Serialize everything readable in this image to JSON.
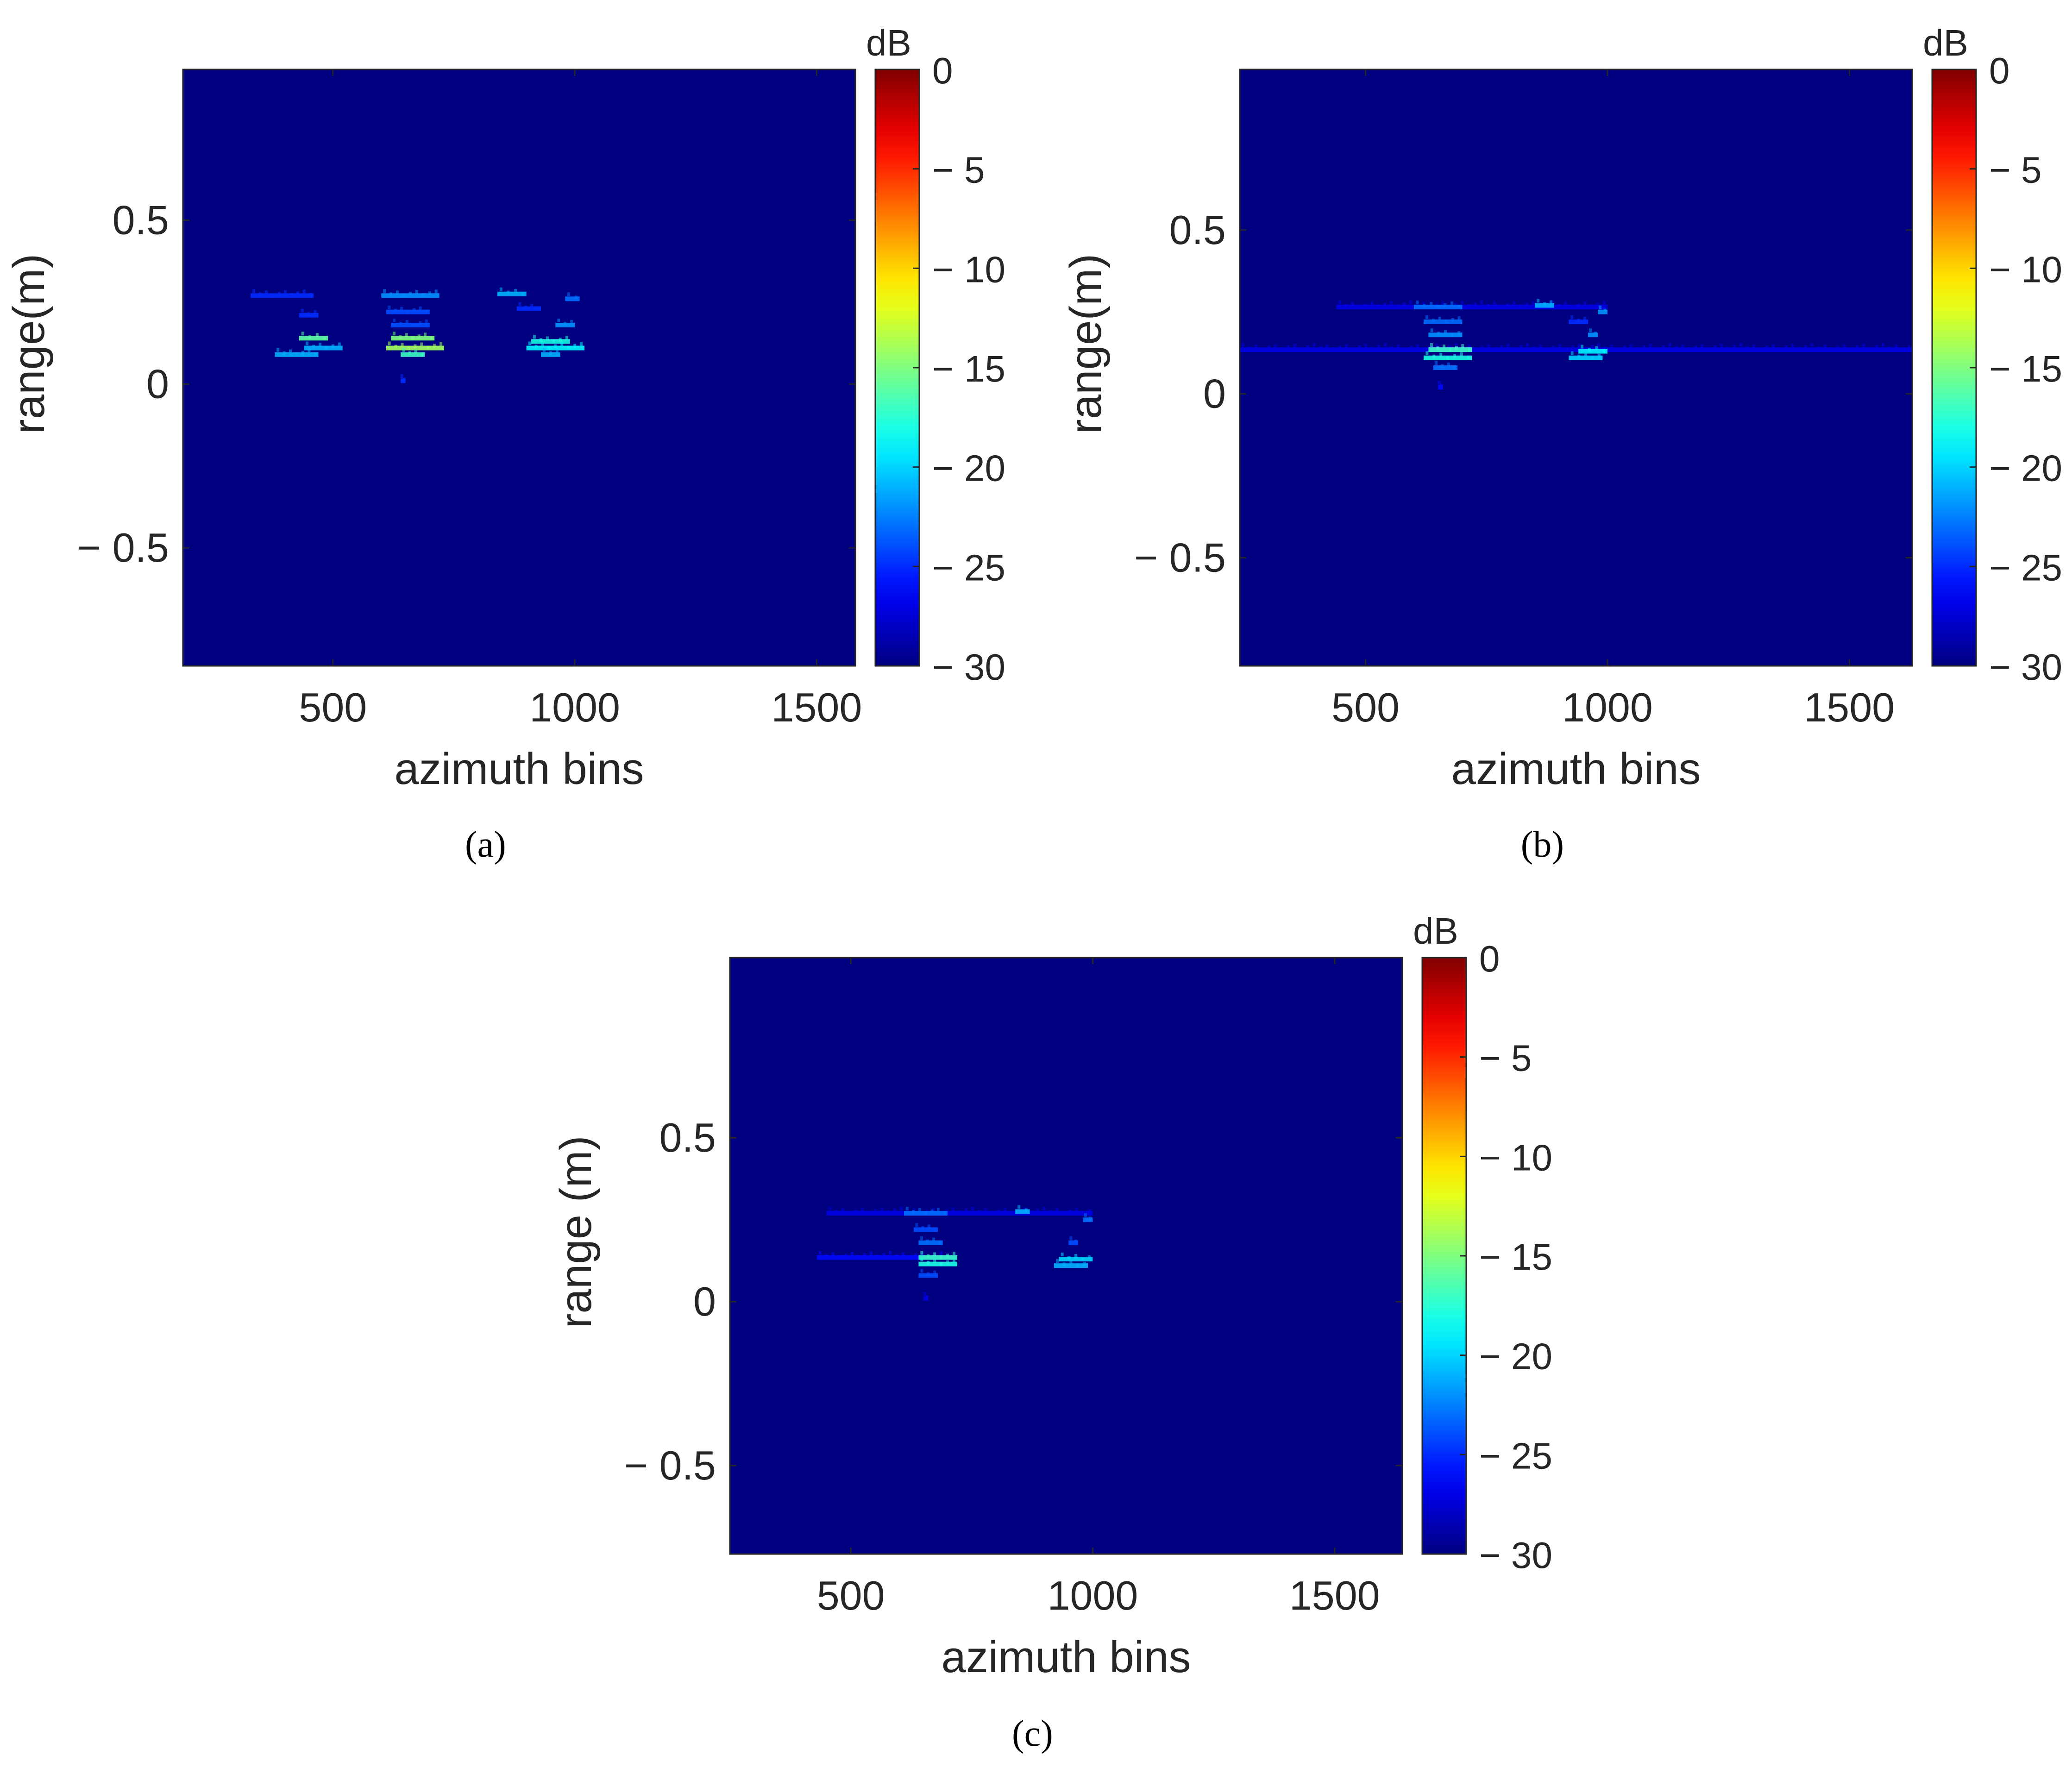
{
  "colormap": {
    "name": "jet",
    "background": "#00008f",
    "range_db": [
      -30,
      0
    ]
  },
  "chart_data": [
    {
      "type": "heatmap",
      "caption": "(a)",
      "xlabel": "azimuth bins",
      "ylabel": "range(m)",
      "xlim": [
        190,
        1580
      ],
      "ylim": [
        -0.86,
        0.96
      ],
      "xticks": [
        500,
        1000,
        1500
      ],
      "xtick_labels": [
        "500",
        "1000",
        "1500"
      ],
      "yticks": [
        0.5,
        0,
        -0.5
      ],
      "ytick_labels": [
        "0.5",
        "0",
        "− 0.5"
      ],
      "colorbar": {
        "unit": "dB",
        "ticks": [
          0,
          -5,
          -10,
          -15,
          -20,
          -25,
          -30
        ],
        "tick_labels": [
          "0",
          "− 5",
          "− 10",
          "− 15",
          "− 20",
          "− 25",
          "− 30"
        ]
      },
      "floor_db": -30,
      "scatterers": [
        {
          "x": 330,
          "x2": 460,
          "y": 0.27,
          "db": -25
        },
        {
          "x": 600,
          "x2": 720,
          "y": 0.27,
          "db": -22
        },
        {
          "x": 840,
          "x2": 900,
          "y": 0.275,
          "db": -21
        },
        {
          "x": 980,
          "x2": 1010,
          "y": 0.26,
          "db": -23
        },
        {
          "x": 430,
          "x2": 470,
          "y": 0.21,
          "db": -25
        },
        {
          "x": 610,
          "x2": 700,
          "y": 0.22,
          "db": -24
        },
        {
          "x": 880,
          "x2": 930,
          "y": 0.23,
          "db": -25
        },
        {
          "x": 620,
          "x2": 700,
          "y": 0.18,
          "db": -24
        },
        {
          "x": 960,
          "x2": 1000,
          "y": 0.18,
          "db": -22
        },
        {
          "x": 430,
          "x2": 490,
          "y": 0.14,
          "db": -16
        },
        {
          "x": 620,
          "x2": 710,
          "y": 0.14,
          "db": -15
        },
        {
          "x": 910,
          "x2": 990,
          "y": 0.13,
          "db": -18
        },
        {
          "x": 440,
          "x2": 520,
          "y": 0.11,
          "db": -21
        },
        {
          "x": 610,
          "x2": 730,
          "y": 0.11,
          "db": -14
        },
        {
          "x": 900,
          "x2": 1020,
          "y": 0.11,
          "db": -19
        },
        {
          "x": 380,
          "x2": 470,
          "y": 0.09,
          "db": -21
        },
        {
          "x": 640,
          "x2": 690,
          "y": 0.09,
          "db": -17
        },
        {
          "x": 930,
          "x2": 970,
          "y": 0.09,
          "db": -21
        },
        {
          "x": 640,
          "x2": 650,
          "y": 0.01,
          "db": -25
        }
      ]
    },
    {
      "type": "heatmap",
      "caption": "(b)",
      "xlabel": "azimuth bins",
      "ylabel": "range(m)",
      "xlim": [
        240,
        1630
      ],
      "ylim": [
        -0.83,
        0.99
      ],
      "xticks": [
        500,
        1000,
        1500
      ],
      "xtick_labels": [
        "500",
        "1000",
        "1500"
      ],
      "yticks": [
        0.5,
        0,
        -0.5
      ],
      "ytick_labels": [
        "0.5",
        "0",
        "− 0.5"
      ],
      "colorbar": {
        "unit": "dB",
        "ticks": [
          0,
          -5,
          -10,
          -15,
          -20,
          -25,
          -30
        ],
        "tick_labels": [
          "0",
          "− 5",
          "− 10",
          "− 15",
          "− 20",
          "− 25",
          "− 30"
        ]
      },
      "floor_db": -30,
      "scatterers": [
        {
          "x": 440,
          "x2": 1000,
          "y": 0.265,
          "db": -27
        },
        {
          "x": 600,
          "x2": 700,
          "y": 0.265,
          "db": -23
        },
        {
          "x": 850,
          "x2": 890,
          "y": 0.27,
          "db": -21
        },
        {
          "x": 980,
          "x2": 1000,
          "y": 0.25,
          "db": -22
        },
        {
          "x": 620,
          "x2": 700,
          "y": 0.22,
          "db": -23
        },
        {
          "x": 920,
          "x2": 960,
          "y": 0.22,
          "db": -25
        },
        {
          "x": 630,
          "x2": 700,
          "y": 0.18,
          "db": -22
        },
        {
          "x": 960,
          "x2": 980,
          "y": 0.18,
          "db": -22
        },
        {
          "x": 240,
          "x2": 1630,
          "y": 0.135,
          "db": -27
        },
        {
          "x": 630,
          "x2": 720,
          "y": 0.135,
          "db": -17
        },
        {
          "x": 940,
          "x2": 1000,
          "y": 0.13,
          "db": -19
        },
        {
          "x": 620,
          "x2": 720,
          "y": 0.11,
          "db": -18
        },
        {
          "x": 920,
          "x2": 990,
          "y": 0.11,
          "db": -20
        },
        {
          "x": 640,
          "x2": 690,
          "y": 0.08,
          "db": -23
        },
        {
          "x": 650,
          "x2": 660,
          "y": 0.02,
          "db": -26
        }
      ]
    },
    {
      "type": "heatmap",
      "caption": "(c)",
      "xlabel": "azimuth bins",
      "ylabel": "range (m)",
      "xlim": [
        250,
        1640
      ],
      "ylim": [
        -0.77,
        1.05
      ],
      "xticks": [
        500,
        1000,
        1500
      ],
      "xtick_labels": [
        "500",
        "1000",
        "1500"
      ],
      "yticks": [
        0.5,
        0,
        -0.5
      ],
      "ytick_labels": [
        "0.5",
        "0",
        "− 0.5"
      ],
      "colorbar": {
        "unit": "dB",
        "ticks": [
          0,
          -5,
          -10,
          -15,
          -20,
          -25,
          -30
        ],
        "tick_labels": [
          "0",
          "− 5",
          "− 10",
          "− 15",
          "− 20",
          "− 25",
          "− 30"
        ]
      },
      "floor_db": -30,
      "scatterers": [
        {
          "x": 450,
          "x2": 1000,
          "y": 0.27,
          "db": -27
        },
        {
          "x": 610,
          "x2": 700,
          "y": 0.27,
          "db": -23
        },
        {
          "x": 840,
          "x2": 870,
          "y": 0.275,
          "db": -21
        },
        {
          "x": 980,
          "x2": 1000,
          "y": 0.25,
          "db": -23
        },
        {
          "x": 630,
          "x2": 680,
          "y": 0.22,
          "db": -24
        },
        {
          "x": 640,
          "x2": 690,
          "y": 0.18,
          "db": -23
        },
        {
          "x": 950,
          "x2": 970,
          "y": 0.18,
          "db": -24
        },
        {
          "x": 430,
          "x2": 720,
          "y": 0.135,
          "db": -26
        },
        {
          "x": 640,
          "x2": 720,
          "y": 0.135,
          "db": -17
        },
        {
          "x": 930,
          "x2": 1000,
          "y": 0.13,
          "db": -20
        },
        {
          "x": 640,
          "x2": 720,
          "y": 0.115,
          "db": -18
        },
        {
          "x": 920,
          "x2": 990,
          "y": 0.11,
          "db": -21
        },
        {
          "x": 640,
          "x2": 680,
          "y": 0.08,
          "db": -24
        },
        {
          "x": 650,
          "x2": 660,
          "y": 0.01,
          "db": -27
        }
      ]
    }
  ]
}
